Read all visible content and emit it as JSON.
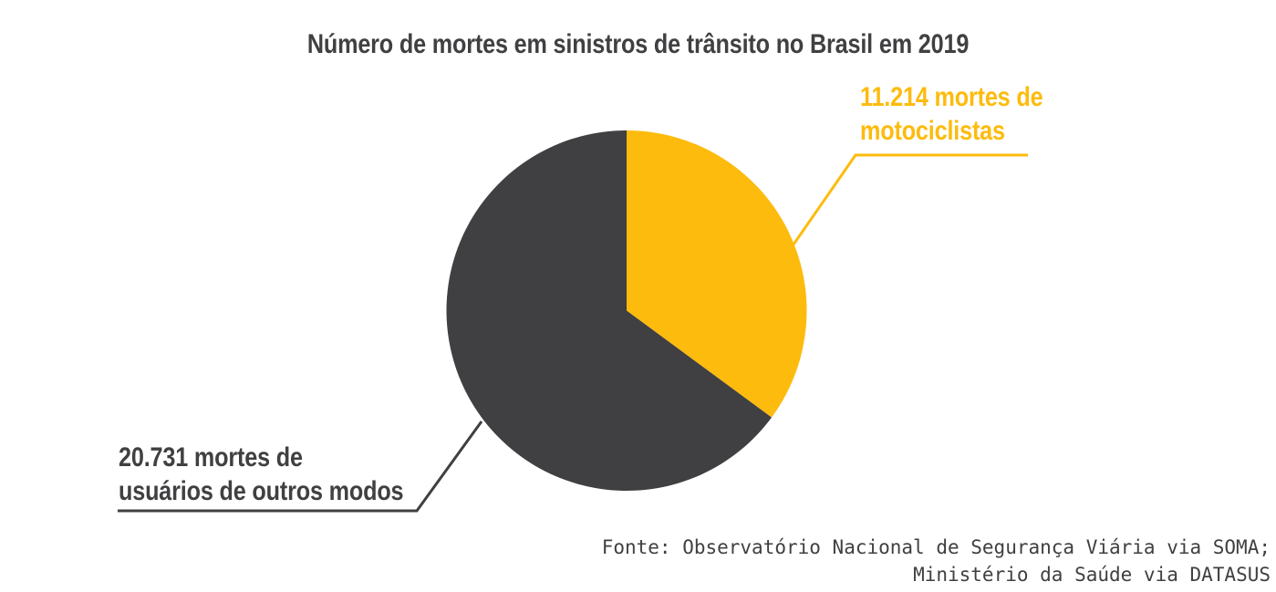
{
  "chart_data": {
    "type": "pie",
    "title": "Número de mortes em sinistros de trânsito no Brasil em 2019",
    "start_angle_deg": 0,
    "direction": "clockwise",
    "legend_position": "callout-labels",
    "slices": [
      {
        "name": "motociclistas",
        "label": "11.214 mortes de\nmotociclistas",
        "value": 11214,
        "display_value": "11.214",
        "color": "#FDBB0D"
      },
      {
        "name": "usuarios-de-outros-modos",
        "label": "20.731 mortes de\nusuários de outros modos",
        "value": 20731,
        "display_value": "20.731",
        "color": "#403F41"
      }
    ],
    "source_lines": [
      "Fonte: Observatório Nacional de Segurança Viária via SOMA;",
      "Ministério da Saúde via DATASUS"
    ]
  },
  "colors": {
    "title_text": "#403F41",
    "source_text": "#403F41",
    "background": "#FFFFFF"
  }
}
